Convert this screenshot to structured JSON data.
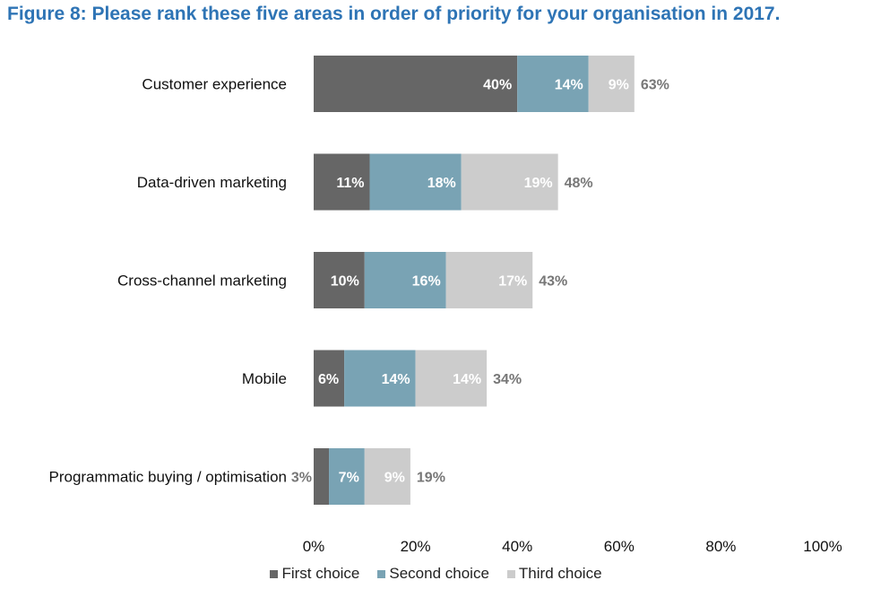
{
  "chart_data": {
    "type": "bar",
    "orientation": "horizontal",
    "stacked": true,
    "title": "Figure 8: Please rank these five areas in order of priority for your organisation in 2017.",
    "categories": [
      "Customer experience",
      "Data-driven marketing",
      "Cross-channel marketing",
      "Mobile",
      "Programmatic buying / optimisation"
    ],
    "series": [
      {
        "name": "First choice",
        "color": "#666666",
        "label_color": "#ffffff",
        "values": [
          40,
          11,
          10,
          6,
          3
        ],
        "labels": [
          "40%",
          "11%",
          "10%",
          "6%",
          "3%"
        ]
      },
      {
        "name": "Second choice",
        "color": "#79a3b4",
        "label_color": "#ffffff",
        "values": [
          14,
          18,
          16,
          14,
          7
        ],
        "labels": [
          "14%",
          "18%",
          "16%",
          "14%",
          "7%"
        ]
      },
      {
        "name": "Third choice",
        "color": "#cccccc",
        "label_color": "#ffffff",
        "values": [
          9,
          19,
          17,
          14,
          9
        ],
        "labels": [
          "9%",
          "19%",
          "17%",
          "14%",
          "9%"
        ]
      }
    ],
    "totals": [
      63,
      48,
      43,
      34,
      19
    ],
    "total_labels": [
      "63%",
      "48%",
      "43%",
      "34%",
      "19%"
    ],
    "xlim": [
      0,
      100
    ],
    "xticks": [
      0,
      20,
      40,
      60,
      80,
      100
    ],
    "xtick_labels": [
      "0%",
      "20%",
      "40%",
      "60%",
      "80%",
      "100%"
    ],
    "grid": false,
    "legend_position": "bottom",
    "title_color": "#2e74b5"
  }
}
